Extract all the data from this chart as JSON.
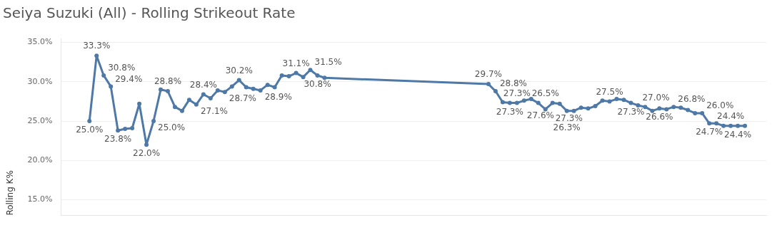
{
  "chart_data": {
    "type": "line",
    "title": "Seiya Suzuki (All) - Rolling Strikeout Rate",
    "ylabel": "Rolling K%",
    "categories": [
      null,
      null,
      null,
      null,
      null,
      null,
      null,
      null,
      null,
      null,
      null,
      null,
      null,
      null,
      null,
      null,
      null,
      null,
      null,
      null,
      null,
      null,
      null,
      null,
      null,
      null,
      null,
      null,
      null,
      null,
      null,
      null,
      null,
      null,
      null,
      null,
      null,
      null,
      null,
      null,
      null,
      null,
      null,
      null,
      null,
      null,
      null,
      null,
      null,
      null,
      null,
      null,
      null,
      null,
      null,
      null,
      null,
      null,
      null,
      null,
      null,
      null,
      null,
      null,
      null,
      null,
      null,
      null,
      null,
      null,
      null,
      null,
      null,
      null,
      null,
      null,
      null,
      null,
      null,
      null,
      null,
      null,
      null,
      null,
      null,
      null,
      null,
      null,
      null,
      null,
      null,
      null,
      null,
      null,
      null,
      null,
      null,
      null,
      null,
      null
    ],
    "series": [
      {
        "color": "#4e79a7",
        "values": [
          null,
          null,
          null,
          null,
          25.0,
          33.3,
          30.8,
          29.4,
          23.8,
          24.0,
          24.1,
          27.2,
          22.0,
          25.0,
          29.0,
          28.8,
          26.8,
          26.3,
          27.7,
          27.1,
          28.4,
          27.9,
          28.9,
          28.7,
          29.4,
          30.2,
          29.3,
          29.1,
          28.9,
          29.6,
          29.3,
          30.8,
          30.7,
          31.1,
          30.6,
          31.5,
          30.8,
          30.5,
          null,
          null,
          null,
          null,
          null,
          null,
          null,
          null,
          null,
          null,
          null,
          null,
          null,
          null,
          null,
          null,
          null,
          null,
          null,
          null,
          null,
          null,
          29.7,
          28.8,
          27.4,
          27.3,
          27.3,
          27.6,
          27.8,
          27.3,
          26.5,
          27.3,
          27.2,
          26.3,
          26.3,
          26.7,
          26.6,
          26.9,
          27.6,
          27.5,
          27.8,
          27.7,
          27.3,
          27.0,
          26.8,
          26.3,
          26.6,
          26.5,
          26.8,
          26.7,
          26.4,
          26.0,
          26.0,
          24.7,
          24.7,
          24.4,
          24.4,
          24.4,
          24.4,
          null,
          null,
          null
        ],
        "value_labels": [
          null,
          null,
          null,
          null,
          "25.0%",
          "33.3%",
          "30.8%",
          "29.4%",
          "23.8%",
          null,
          null,
          null,
          "22.0%",
          "25.0%",
          null,
          "28.8%",
          null,
          null,
          null,
          "27.1%",
          "28.4%",
          null,
          null,
          "28.7%",
          null,
          "30.2%",
          null,
          null,
          "28.9%",
          null,
          null,
          null,
          null,
          "31.1%",
          null,
          "31.5%",
          "30.8%",
          null,
          null,
          null,
          null,
          null,
          null,
          null,
          null,
          null,
          null,
          null,
          null,
          null,
          null,
          null,
          null,
          null,
          null,
          null,
          null,
          null,
          null,
          null,
          "29.7%",
          "28.8%",
          null,
          "27.3%",
          "27.3%",
          "27.6%",
          null,
          null,
          "26.5%",
          "27.3%",
          null,
          "26.3%",
          null,
          null,
          null,
          null,
          null,
          "27.5%",
          null,
          null,
          "27.3%",
          "27.0%",
          null,
          null,
          "26.6%",
          null,
          "26.8%",
          null,
          null,
          null,
          "26.0%",
          "24.7%",
          null,
          null,
          "24.4%",
          "24.4%",
          null,
          null,
          null,
          null
        ]
      }
    ],
    "ylim": [
      13,
      35.5
    ],
    "yticks": [
      {
        "value": 15,
        "label": "15.0%"
      },
      {
        "value": 20,
        "label": "20.0%"
      },
      {
        "value": 25,
        "label": "25.0%"
      },
      {
        "value": 30,
        "label": "30.0%"
      },
      {
        "value": 35,
        "label": "35.0%"
      }
    ],
    "grid": "y",
    "legend": false,
    "marker": "circle",
    "line_style": "solid"
  }
}
